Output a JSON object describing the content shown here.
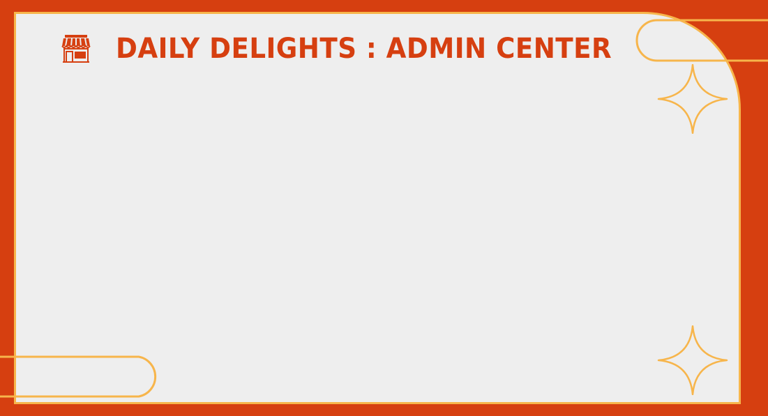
{
  "header": {
    "logo_icon": "storefront-icon",
    "title": "DAILY DELIGHTS : ADMIN CENTER"
  },
  "decorations": {
    "sparkle_icon": "four-point-star-icon",
    "sparkle_count": 2
  },
  "colors": {
    "background": "#D63F10",
    "panel": "#EEEEEE",
    "accent_outline": "#F7B54B",
    "title": "#D63F10"
  }
}
